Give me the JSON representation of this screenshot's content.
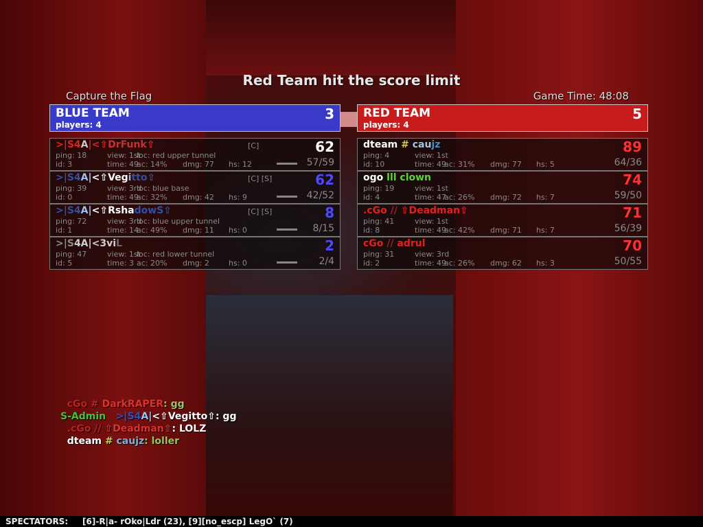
{
  "header": {
    "title": "Red Team hit the score limit",
    "mode": "Capture the Flag",
    "game_time": "Game Time: 48:08"
  },
  "colors": {
    "blue_team": "#3a3ac8",
    "red_team": "#c81c1c"
  },
  "teams": {
    "blue": {
      "name": "BLUE TEAM",
      "players": "players: 4",
      "score": "3",
      "score_color": "#ffffff",
      "rows": [
        {
          "name": [
            {
              "t": ">|S4",
              "c": "#e02020"
            },
            {
              "t": "A",
              "c": "#c8c8c8"
            },
            {
              "t": "|<⇧",
              "c": "#e02020"
            },
            {
              "t": "DrFunk⇧",
              "c": "#c83030"
            }
          ],
          "tags": "[C]",
          "score": "62",
          "score_color": "#ffffff",
          "ping": "ping: 18",
          "view": "view: 1st",
          "loc": "loc: red upper tunnel",
          "id": "id: 3",
          "time": "time: 49",
          "ac": "ac: 14%",
          "dmg": "dmg: 77",
          "hs": "hs: 12",
          "kd": "57/59"
        },
        {
          "name": [
            {
              "t": ">|S4",
              "c": "#3050a0"
            },
            {
              "t": "A|",
              "c": "#a0c0f0"
            },
            {
              "t": "<⇧Veg",
              "c": "#ffffff"
            },
            {
              "t": "i",
              "c": "#a0b0e0"
            },
            {
              "t": "tto⇧",
              "c": "#3050a0"
            }
          ],
          "tags": "[C] [S]",
          "score": "62",
          "score_color": "#4a4aff",
          "ping": "ping: 39",
          "view": "view: 3rd",
          "loc": "loc: blue base",
          "id": "id: 0",
          "time": "time: 49",
          "ac": "ac: 32%",
          "dmg": "dmg: 42",
          "hs": "hs: 9",
          "kd": "42/52"
        },
        {
          "name": [
            {
              "t": ">|S4",
              "c": "#3050a0"
            },
            {
              "t": "A|",
              "c": "#a0c0f0"
            },
            {
              "t": "<⇧Rsha",
              "c": "#ffffff"
            },
            {
              "t": "dowS⇧",
              "c": "#3050a0"
            }
          ],
          "tags": "[C] [S]",
          "score": "8",
          "score_color": "#4a4aff",
          "ping": "ping: 72",
          "view": "view: 3rd",
          "loc": "loc: blue upper tunnel",
          "id": "id: 1",
          "time": "time: 14",
          "ac": "ac: 49%",
          "dmg": "dmg: 11",
          "hs": "hs: 0",
          "kd": "8/15"
        },
        {
          "name": [
            {
              "t": ">|S",
              "c": "#8a8a8a"
            },
            {
              "t": "4A|<3vi",
              "c": "#d0d0d0"
            },
            {
              "t": "L",
              "c": "#6a6a6a"
            }
          ],
          "tags": "",
          "score": "2",
          "score_color": "#4a4aff",
          "ping": "ping: 47",
          "view": "view: 1st",
          "loc": "loc: red lower tunnel",
          "id": "id: 5",
          "time": "time: 3",
          "ac": "ac: 20%",
          "dmg": "dmg: 2",
          "hs": "hs: 0",
          "kd": "2/4"
        }
      ]
    },
    "red": {
      "name": "RED TEAM",
      "players": "players: 4",
      "score": "5",
      "score_color": "#ffffff",
      "rows": [
        {
          "name": [
            {
              "t": "dteam ",
              "c": "#ffffff"
            },
            {
              "t": "# ",
              "c": "#d0d040"
            },
            {
              "t": "cau",
              "c": "#a0c8e0"
            },
            {
              "t": "jz",
              "c": "#4090c0"
            }
          ],
          "score": "89",
          "score_color": "#ff3030",
          "ping": "ping: 4",
          "view": "view: 1st",
          "loc": "",
          "id": "id: 10",
          "time": "time: 49",
          "ac": "ac: 31%",
          "dmg": "dmg: 77",
          "hs": "hs: 5",
          "kd": "64/36"
        },
        {
          "name": [
            {
              "t": "ogo ",
              "c": "#ffffff"
            },
            {
              "t": "lll clown",
              "c": "#60d040"
            }
          ],
          "score": "74",
          "score_color": "#ff3030",
          "ping": "ping: 19",
          "view": "view: 1st",
          "loc": "",
          "id": "id: 4",
          "time": "time: 47",
          "ac": "ac: 26%",
          "dmg": "dmg: 72",
          "hs": "hs: 7",
          "kd": "59/50"
        },
        {
          "name": [
            {
              "t": ".cGo ",
              "c": "#e02020"
            },
            {
              "t": "// ",
              "c": "#a02020"
            },
            {
              "t": "⇧Deadman⇧",
              "c": "#e02020"
            }
          ],
          "score": "71",
          "score_color": "#ff3030",
          "ping": "ping: 41",
          "view": "view: 1st",
          "loc": "",
          "id": "id: 8",
          "time": "time: 49",
          "ac": "ac: 42%",
          "dmg": "dmg: 71",
          "hs": "hs: 7",
          "kd": "56/39"
        },
        {
          "name": [
            {
              "t": "cGo ",
              "c": "#e02020"
            },
            {
              "t": "// ",
              "c": "#a02020"
            },
            {
              "t": "adrul",
              "c": "#e02020"
            }
          ],
          "score": "70",
          "score_color": "#ff3030",
          "ping": "ping: 31",
          "view": "view: 3rd",
          "loc": "",
          "id": "id: 2",
          "time": "time: 49",
          "ac": "ac: 26%",
          "dmg": "dmg: 62",
          "hs": "hs: 3",
          "kd": "50/55"
        }
      ]
    }
  },
  "chat": [
    [
      {
        "t": "  cGo # ",
        "c": "#c02020"
      },
      {
        "t": "DarkRAPER",
        "c": "#e03030"
      },
      {
        "t": ": gg",
        "c": "#a0c060"
      }
    ],
    [
      {
        "t": "S-Admin   ",
        "c": "#40c040"
      },
      {
        "t": ">|S4",
        "c": "#3050c0"
      },
      {
        "t": "A|",
        "c": "#a0c0f0"
      },
      {
        "t": "<⇧Vegitto⇧",
        "c": "#ffffff"
      },
      {
        "t": ": gg",
        "c": "#ffffff"
      }
    ],
    [
      {
        "t": "  .cGo // ",
        "c": "#c02020"
      },
      {
        "t": "⇧Deadman⇧",
        "c": "#e03030"
      },
      {
        "t": ": LOLZ",
        "c": "#ffffff"
      }
    ],
    [
      {
        "t": "  dteam ",
        "c": "#ffffff"
      },
      {
        "t": "# ",
        "c": "#d0d040"
      },
      {
        "t": "caujz",
        "c": "#80b0d0"
      },
      {
        "t": ": loller",
        "c": "#a0c060"
      }
    ]
  ],
  "spectators": {
    "label": "SPECTATORS:",
    "list": "[6]-R|a- rOko|Ldr (23), [9][no_escp] LegO` (7)"
  }
}
